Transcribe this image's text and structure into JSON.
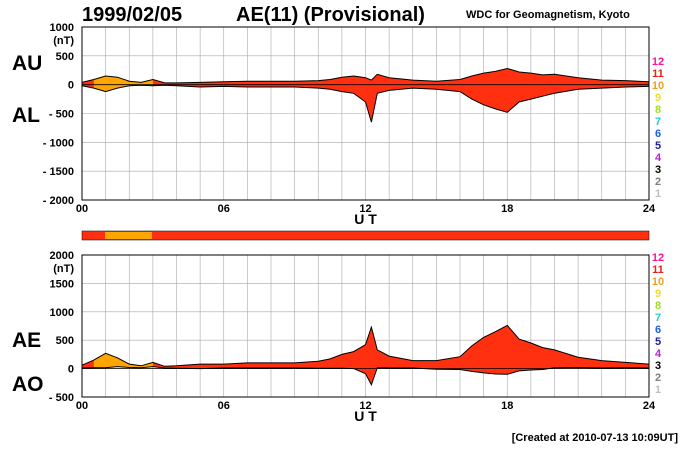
{
  "header": {
    "date": "1999/02/05",
    "title": "AE(11) (Provisional)",
    "source": "WDC for Geomagnetism, Kyoto"
  },
  "footer": {
    "created": "[Created at 2010-07-13 10:09UT]"
  },
  "labels": {
    "au": "AU",
    "al": "AL",
    "ae": "AE",
    "ao": "AO"
  },
  "stations_legend": [
    {
      "n": "12",
      "color": "#ff1493"
    },
    {
      "n": "11",
      "color": "#e8231a"
    },
    {
      "n": "10",
      "color": "#f0a020"
    },
    {
      "n": "9",
      "color": "#f0e020"
    },
    {
      "n": "8",
      "color": "#a0e020"
    },
    {
      "n": "7",
      "color": "#20d0d0"
    },
    {
      "n": "6",
      "color": "#2060e0"
    },
    {
      "n": "5",
      "color": "#2020a0"
    },
    {
      "n": "4",
      "color": "#c020d0"
    },
    {
      "n": "3",
      "color": "#000000"
    },
    {
      "n": "2",
      "color": "#808080"
    },
    {
      "n": "1",
      "color": "#c0c0c0"
    }
  ],
  "colors": {
    "fill_main": "#ff3010",
    "fill_alt": "#ffa500",
    "tick_mark": "#ffd040",
    "line": "#000000"
  },
  "chart_data": [
    {
      "type": "area",
      "name": "AU/AL",
      "xlabel": "U T",
      "ylabel_unit": "(nT)",
      "x_ticks": [
        "00",
        "06",
        "12",
        "18",
        "24"
      ],
      "xlim": [
        0,
        24
      ],
      "ylim": [
        -2000,
        1000
      ],
      "y_ticks": [
        1000,
        500,
        0,
        -500,
        -1000,
        -1500,
        -2000
      ],
      "y_tick_labels": [
        "1000",
        "500",
        "0",
        "- 500",
        "- 1000",
        "- 1500",
        "- 2000"
      ],
      "grid": true,
      "x": [
        0,
        0.5,
        1,
        1.5,
        2,
        2.5,
        3,
        3.5,
        4,
        5,
        6,
        7,
        8,
        9,
        10,
        10.5,
        11,
        11.5,
        12,
        12.25,
        12.5,
        13,
        14,
        15,
        16,
        16.5,
        17,
        17.5,
        18,
        18.5,
        19,
        19.5,
        20,
        21,
        22,
        23,
        24
      ],
      "series": [
        {
          "name": "AU",
          "values": [
            40,
            90,
            150,
            130,
            60,
            40,
            90,
            30,
            30,
            40,
            50,
            60,
            60,
            60,
            70,
            90,
            130,
            150,
            120,
            80,
            180,
            120,
            80,
            60,
            90,
            150,
            200,
            230,
            280,
            220,
            200,
            170,
            180,
            120,
            80,
            70,
            50
          ]
        },
        {
          "name": "AL",
          "values": [
            -20,
            -60,
            -120,
            -60,
            -20,
            -10,
            -20,
            -10,
            -20,
            -40,
            -30,
            -40,
            -40,
            -40,
            -60,
            -80,
            -120,
            -150,
            -300,
            -650,
            -150,
            -100,
            -60,
            -80,
            -120,
            -250,
            -350,
            -420,
            -480,
            -300,
            -250,
            -200,
            -150,
            -80,
            -60,
            -40,
            -30
          ]
        }
      ]
    },
    {
      "type": "area",
      "name": "AE/AO",
      "xlabel": "U T",
      "ylabel_unit": "(nT)",
      "x_ticks": [
        "00",
        "06",
        "12",
        "18",
        "24"
      ],
      "xlim": [
        0,
        24
      ],
      "ylim": [
        -500,
        2000
      ],
      "y_ticks": [
        2000,
        1500,
        1000,
        500,
        0,
        -500
      ],
      "y_tick_labels": [
        "2000",
        "1500",
        "1000",
        "500",
        "0",
        "- 500"
      ],
      "grid": true,
      "x": [
        0,
        0.5,
        1,
        1.5,
        2,
        2.5,
        3,
        3.5,
        4,
        5,
        6,
        7,
        8,
        9,
        10,
        10.5,
        11,
        11.5,
        12,
        12.25,
        12.5,
        13,
        14,
        15,
        16,
        16.5,
        17,
        17.5,
        18,
        18.5,
        19,
        19.5,
        20,
        21,
        22,
        23,
        24
      ],
      "series": [
        {
          "name": "AE",
          "values": [
            60,
            150,
            270,
            190,
            80,
            50,
            110,
            40,
            50,
            80,
            80,
            100,
            100,
            100,
            130,
            170,
            250,
            300,
            420,
            730,
            330,
            220,
            140,
            140,
            210,
            400,
            550,
            650,
            760,
            520,
            450,
            370,
            330,
            200,
            140,
            110,
            80
          ]
        },
        {
          "name": "AO",
          "values": [
            10,
            15,
            15,
            35,
            20,
            15,
            35,
            10,
            5,
            0,
            10,
            10,
            10,
            10,
            5,
            5,
            5,
            0,
            -90,
            -285,
            15,
            10,
            10,
            -10,
            -15,
            -50,
            -75,
            -95,
            -100,
            -40,
            -25,
            -15,
            15,
            20,
            10,
            15,
            10
          ]
        }
      ]
    }
  ]
}
